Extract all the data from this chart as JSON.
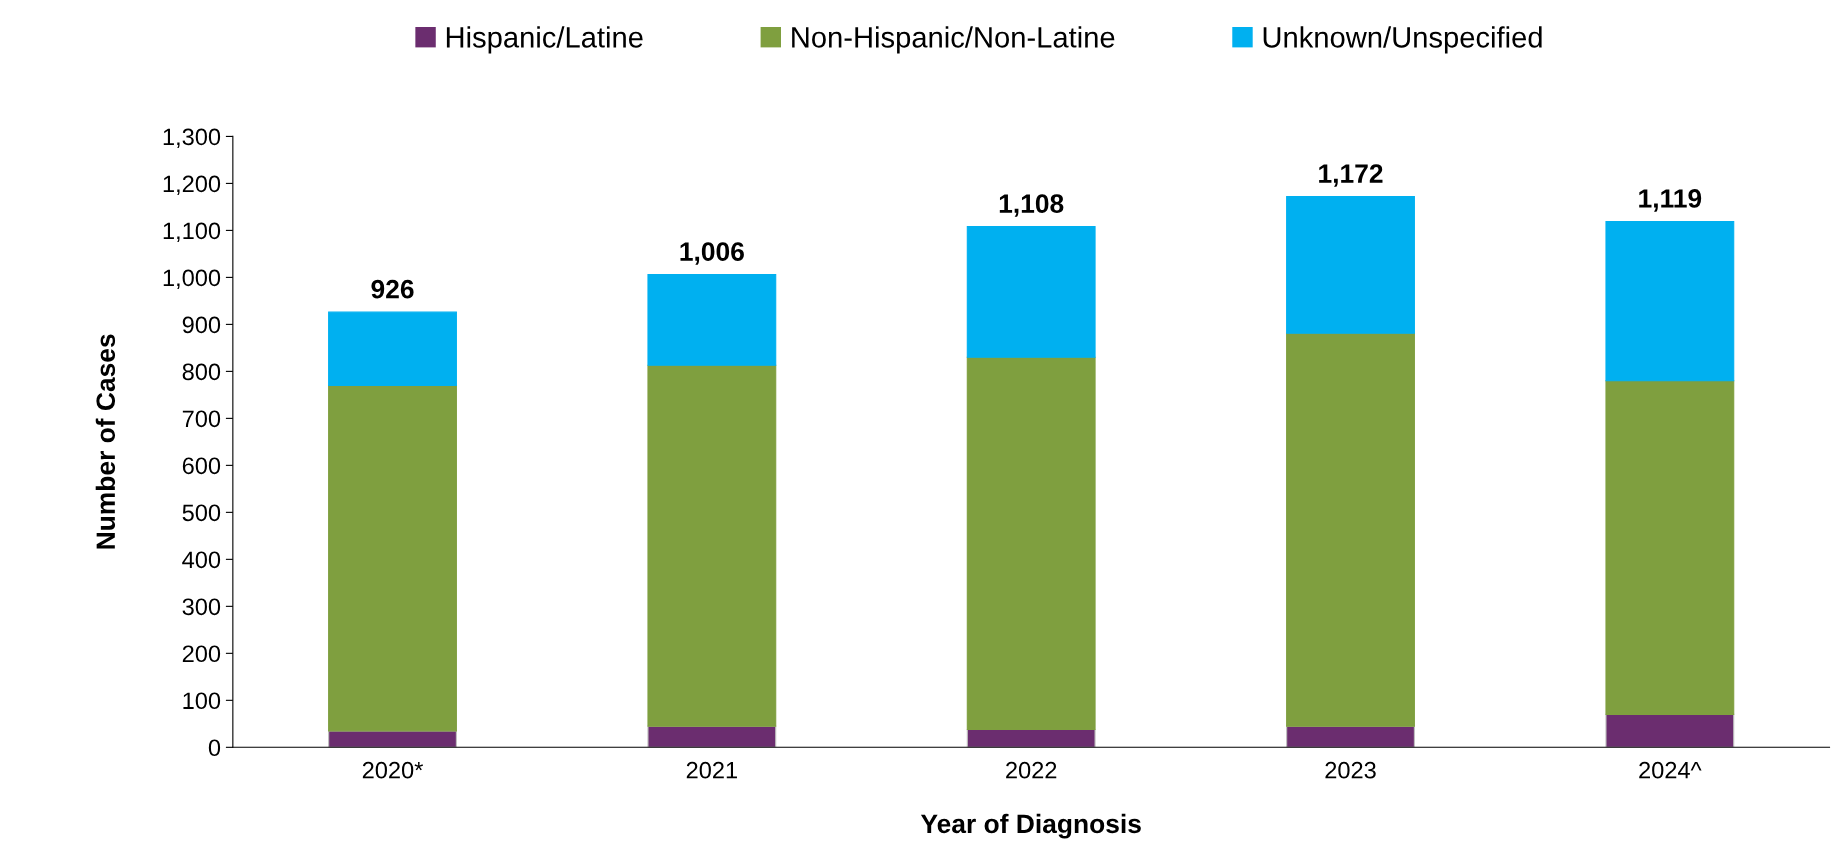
{
  "chart_data": {
    "type": "bar",
    "stacked": true,
    "xlabel": "Year of Diagnosis",
    "ylabel": "Number of Cases",
    "categories": [
      "2020*",
      "2021",
      "2022",
      "2023",
      "2024^"
    ],
    "series": [
      {
        "name": "Hispanic/Latine",
        "color": "#6b2d6f",
        "values": [
          35,
          45,
          38,
          45,
          70
        ]
      },
      {
        "name": "Non-Hispanic/Non-Latine",
        "color": "#7f9f3f",
        "values": [
          735,
          768,
          792,
          836,
          710
        ]
      },
      {
        "name": "Unknown/Unspecified",
        "color": "#00b0f0",
        "values": [
          156,
          193,
          278,
          291,
          339
        ]
      }
    ],
    "totals": [
      "926",
      "1,006",
      "1,108",
      "1,172",
      "1,119"
    ],
    "ylim": [
      0,
      1300
    ],
    "yticks": [
      0,
      100,
      200,
      300,
      400,
      500,
      600,
      700,
      800,
      900,
      {
        "value": 1000,
        "label": "1,000"
      },
      {
        "value": 1100,
        "label": "1,100"
      },
      {
        "value": 1200,
        "label": "1,200"
      },
      {
        "value": 1300,
        "label": "1,300"
      }
    ],
    "grid": false,
    "legend": "top"
  }
}
